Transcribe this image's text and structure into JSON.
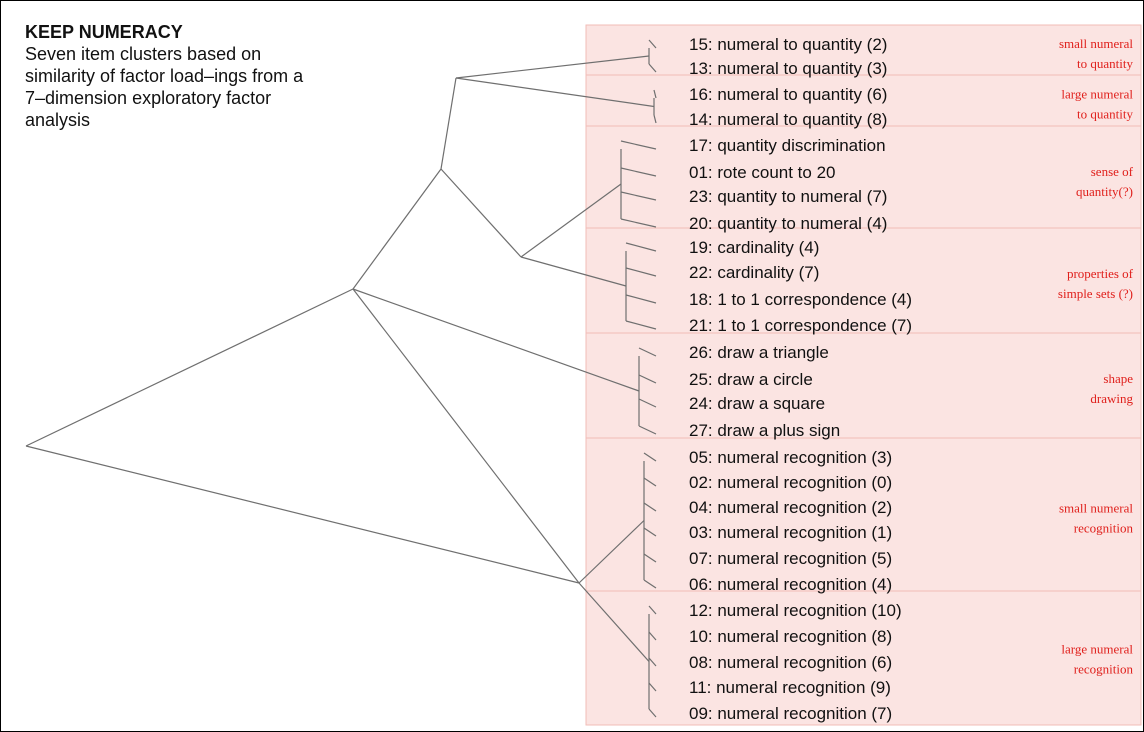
{
  "header": {
    "title": "KEEP NUMERACY",
    "description": "Seven item clusters based on similarity of factor load–ings from a 7–dimension exploratory factor analysis"
  },
  "colors": {
    "group_fill": "#fbe4e2",
    "group_border": "#f2bcb7",
    "group_label": "#e0201c",
    "branch": "#6f6f6f"
  },
  "items": [
    "15: numeral to quantity (2)",
    "13: numeral to quantity (3)",
    "16: numeral to quantity (6)",
    "14: numeral to quantity (8)",
    "17: quantity discrimination",
    "01: rote count to 20",
    "23: quantity to numeral (7)",
    "20: quantity to numeral (4)",
    "19: cardinality (4)",
    "22: cardinality (7)",
    "18: 1 to 1 correspondence (4)",
    "21: 1 to 1 correspondence (7)",
    "26: draw a triangle",
    "25: draw a circle",
    "24: draw a square",
    "27: draw a plus sign",
    "05: numeral recognition (3)",
    "02: numeral recognition (0)",
    "04: numeral recognition (2)",
    "03: numeral recognition (1)",
    "07: numeral recognition (5)",
    "06: numeral recognition (4)",
    "12: numeral recognition (10)",
    "10: numeral recognition (8)",
    "08: numeral recognition (6)",
    "11: numeral recognition (9)",
    "09: numeral recognition (7)"
  ],
  "groups": [
    {
      "label": [
        "small numeral",
        "to quantity"
      ],
      "first": 0,
      "last": 1
    },
    {
      "label": [
        "large numeral",
        "to quantity"
      ],
      "first": 2,
      "last": 3
    },
    {
      "label": [
        "sense of",
        "quantity(?)"
      ],
      "first": 4,
      "last": 7
    },
    {
      "label": [
        "properties of",
        "simple sets (?)"
      ],
      "first": 8,
      "last": 11
    },
    {
      "label": [
        "shape",
        "drawing"
      ],
      "first": 12,
      "last": 15
    },
    {
      "label": [
        "small numeral",
        "recognition"
      ],
      "first": 16,
      "last": 21
    },
    {
      "label": [
        "large numeral",
        "recognition"
      ],
      "first": 22,
      "last": 26
    }
  ],
  "tree": {
    "root": {
      "children": [
        "upper",
        "lower"
      ]
    },
    "upper": {
      "children": [
        "upper_a",
        "upper_b"
      ]
    },
    "upper_a": {
      "children": [
        "g1",
        "g2"
      ]
    },
    "upper_b": {
      "children": [
        "g3",
        "g4"
      ]
    },
    "lower": {
      "children": [
        "g5",
        "lower_b"
      ]
    },
    "lower_b": {
      "children": [
        "g6",
        "g7"
      ]
    }
  }
}
